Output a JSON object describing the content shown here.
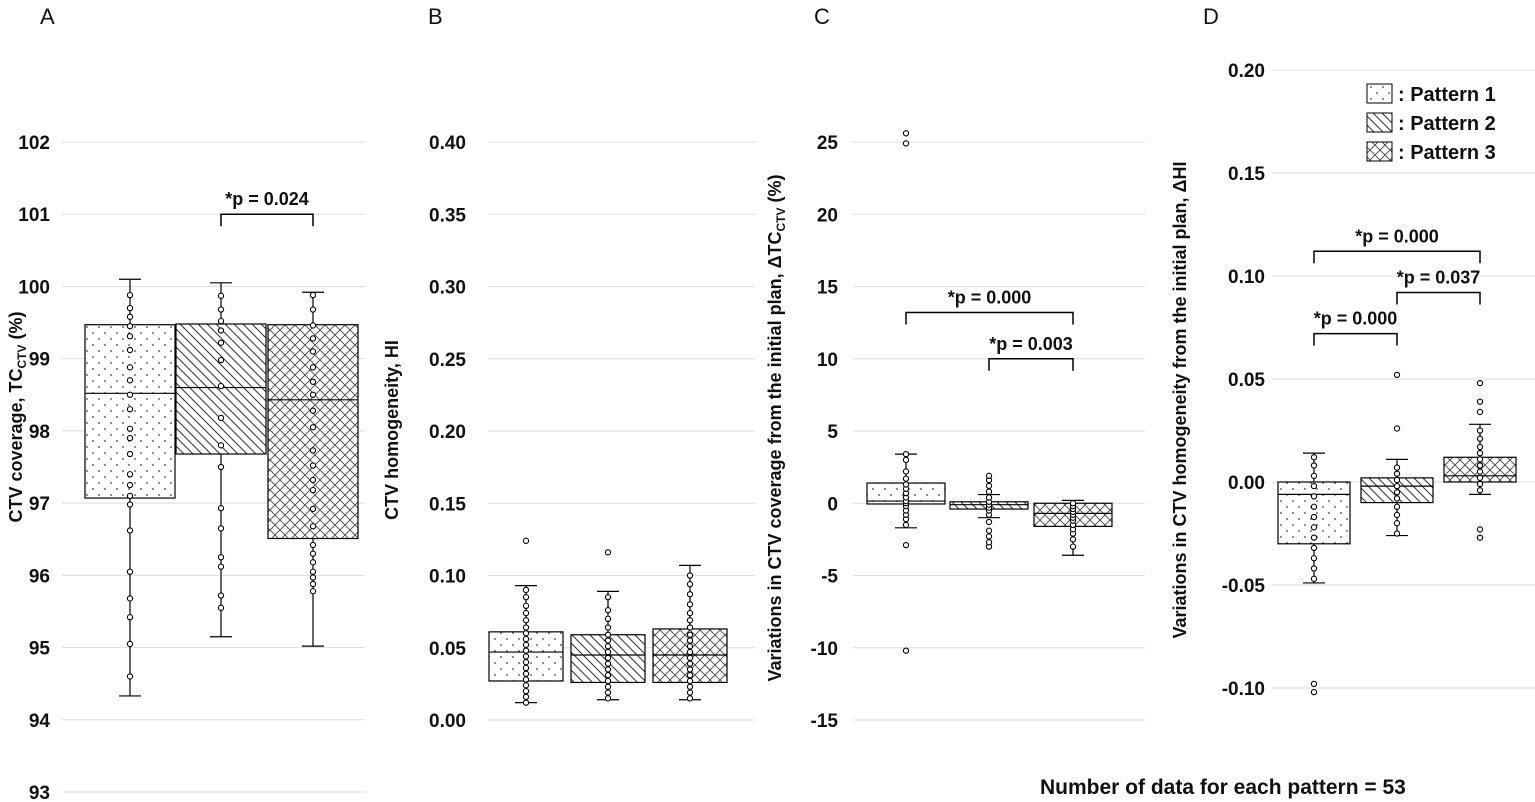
{
  "footer_note": "Number of data for each pattern = 53",
  "legend": [
    {
      "label": ": Pattern 1",
      "pattern": "dots"
    },
    {
      "label": ": Pattern 2",
      "pattern": "diag"
    },
    {
      "label": ": Pattern 3",
      "pattern": "cross"
    }
  ],
  "chart_data": [
    {
      "panel": "A",
      "type": "box",
      "ylabel": "CTV coverage, TC",
      "ylabel_sub": "CTV",
      "ylabel_suffix": " (%)",
      "ylim": [
        93,
        102
      ],
      "yticks": [
        93,
        94,
        95,
        96,
        97,
        98,
        99,
        100,
        101,
        102
      ],
      "ytick_labels": [
        "93",
        "94",
        "95",
        "96",
        "97",
        "98",
        "99",
        "100",
        "101",
        "102"
      ],
      "categories": [
        "Pattern 1",
        "Pattern 2",
        "Pattern 3"
      ],
      "boxes": [
        {
          "whisker_low": 94.33,
          "q1": 97.07,
          "median": 98.52,
          "q3": 99.47,
          "whisker_high": 100.1,
          "points": [
            94.6,
            95.05,
            95.42,
            95.68,
            96.05,
            96.62,
            96.98,
            97.1,
            97.25,
            97.4,
            97.68,
            97.9,
            98.03,
            98.3,
            98.5,
            98.7,
            98.88,
            99.12,
            99.31,
            99.45,
            99.58,
            99.7,
            99.88
          ]
        },
        {
          "whisker_low": 95.15,
          "q1": 97.68,
          "median": 98.6,
          "q3": 99.48,
          "whisker_high": 100.05,
          "points": [
            95.55,
            95.72,
            96.12,
            96.25,
            96.65,
            96.93,
            97.5,
            97.8,
            98.18,
            98.62,
            98.98,
            99.22,
            99.39,
            99.52,
            99.68,
            99.87
          ]
        },
        {
          "whisker_low": 95.02,
          "q1": 96.51,
          "median": 98.43,
          "q3": 99.47,
          "whisker_high": 99.92,
          "points": [
            95.78,
            95.88,
            95.97,
            96.05,
            96.18,
            96.3,
            96.42,
            96.68,
            96.92,
            97.18,
            97.32,
            97.52,
            97.73,
            98.05,
            98.28,
            98.5,
            98.68,
            98.88,
            99.1,
            99.28,
            99.46,
            99.68,
            99.88
          ]
        }
      ],
      "significance": [
        {
          "text": "*p = 0.024",
          "from": 2,
          "to": 3,
          "y": 101.0
        }
      ]
    },
    {
      "panel": "B",
      "type": "box",
      "ylabel": "CTV homogeneity, HI",
      "ylim": [
        0.0,
        0.4
      ],
      "yticks": [
        0.0,
        0.05,
        0.1,
        0.15,
        0.2,
        0.25,
        0.3,
        0.35,
        0.4
      ],
      "ytick_labels": [
        "0.00",
        "0.05",
        "0.10",
        "0.15",
        "0.20",
        "0.25",
        "0.30",
        "0.35",
        "0.40"
      ],
      "categories": [
        "Pattern 1",
        "Pattern 2",
        "Pattern 3"
      ],
      "boxes": [
        {
          "whisker_low": 0.012,
          "q1": 0.027,
          "median": 0.047,
          "q3": 0.061,
          "whisker_high": 0.093,
          "points": [
            0.012,
            0.016,
            0.02,
            0.024,
            0.028,
            0.032,
            0.036,
            0.04,
            0.044,
            0.048,
            0.052,
            0.056,
            0.06,
            0.064,
            0.069,
            0.074,
            0.079,
            0.085,
            0.09,
            0.124
          ]
        },
        {
          "whisker_low": 0.014,
          "q1": 0.026,
          "median": 0.045,
          "q3": 0.059,
          "whisker_high": 0.089,
          "points": [
            0.015,
            0.019,
            0.023,
            0.027,
            0.031,
            0.035,
            0.039,
            0.043,
            0.047,
            0.051,
            0.055,
            0.059,
            0.064,
            0.07,
            0.076,
            0.085,
            0.116
          ]
        },
        {
          "whisker_low": 0.014,
          "q1": 0.026,
          "median": 0.045,
          "q3": 0.063,
          "whisker_high": 0.107,
          "points": [
            0.015,
            0.019,
            0.023,
            0.027,
            0.031,
            0.035,
            0.039,
            0.043,
            0.047,
            0.051,
            0.055,
            0.059,
            0.064,
            0.069,
            0.074,
            0.08,
            0.087,
            0.094,
            0.1
          ]
        }
      ],
      "significance": []
    },
    {
      "panel": "C",
      "type": "box",
      "ylabel": "Variations in CTV coverage from the initial plan, ΔTC",
      "ylabel_sub": "CTV",
      "ylabel_suffix": " (%)",
      "ylim": [
        -15,
        25
      ],
      "yticks": [
        -15,
        -10,
        -5,
        0,
        5,
        10,
        15,
        20,
        25
      ],
      "ytick_labels": [
        "-15",
        "-10",
        "-5",
        "0",
        "5",
        "10",
        "15",
        "20",
        "25"
      ],
      "categories": [
        "Pattern 1",
        "Pattern 2",
        "Pattern 3"
      ],
      "boxes": [
        {
          "whisker_low": -1.7,
          "q1": -0.05,
          "median": 0.15,
          "q3": 1.4,
          "whisker_high": 3.4,
          "points": [
            -10.2,
            -2.9,
            -1.5,
            -1.1,
            -0.8,
            -0.5,
            -0.2,
            0.0,
            0.15,
            0.4,
            0.7,
            1.0,
            1.3,
            1.7,
            2.2,
            3.0,
            3.4,
            24.9,
            25.6
          ]
        },
        {
          "whisker_low": -1.0,
          "q1": -0.4,
          "median": -0.1,
          "q3": 0.1,
          "whisker_high": 0.6,
          "points": [
            -3.0,
            -2.7,
            -2.3,
            -1.9,
            -1.3,
            -0.8,
            -0.5,
            -0.3,
            -0.1,
            0.1,
            0.4,
            0.8,
            1.2,
            1.6,
            1.9
          ]
        },
        {
          "whisker_low": -3.6,
          "q1": -1.6,
          "median": -0.7,
          "q3": 0.0,
          "whisker_high": 0.2,
          "points": [
            -3.0,
            -2.5,
            -2.1,
            -1.8,
            -1.5,
            -1.2,
            -1.0,
            -0.8,
            -0.6,
            -0.4,
            -0.2,
            0.0
          ]
        }
      ],
      "significance": [
        {
          "text": "*p = 0.000",
          "from": 1,
          "to": 3,
          "y": 13.2
        },
        {
          "text": "*p = 0.003",
          "from": 2,
          "to": 3,
          "y": 10.0
        }
      ]
    },
    {
      "panel": "D",
      "type": "box",
      "ylabel": "Variations in CTV homogeneity from the initial plan, ΔHI",
      "ylim": [
        -0.1,
        0.2
      ],
      "yticks": [
        -0.1,
        -0.05,
        0.0,
        0.05,
        0.1,
        0.15,
        0.2
      ],
      "ytick_labels": [
        "-0.10",
        "-0.05",
        "0.00",
        "0.05",
        "0.10",
        "0.15",
        "0.20"
      ],
      "categories": [
        "Pattern 1",
        "Pattern 2",
        "Pattern 3"
      ],
      "boxes": [
        {
          "whisker_low": -0.049,
          "q1": -0.03,
          "median": -0.006,
          "q3": 0.0,
          "whisker_high": 0.014,
          "points": [
            -0.102,
            -0.098,
            -0.047,
            -0.042,
            -0.037,
            -0.032,
            -0.027,
            -0.022,
            -0.017,
            -0.012,
            -0.007,
            -0.002,
            0.003,
            0.008,
            0.012
          ]
        },
        {
          "whisker_low": -0.026,
          "q1": -0.01,
          "median": -0.002,
          "q3": 0.002,
          "whisker_high": 0.011,
          "points": [
            -0.025,
            -0.02,
            -0.016,
            -0.012,
            -0.008,
            -0.005,
            -0.002,
            0.001,
            0.004,
            0.007,
            0.026,
            0.052
          ]
        },
        {
          "whisker_low": -0.006,
          "q1": 0.0,
          "median": 0.003,
          "q3": 0.012,
          "whisker_high": 0.028,
          "points": [
            -0.027,
            -0.023,
            -0.004,
            -0.001,
            0.002,
            0.005,
            0.008,
            0.011,
            0.014,
            0.017,
            0.021,
            0.025,
            0.034,
            0.039,
            0.048
          ]
        }
      ],
      "significance": [
        {
          "text": "*p = 0.000",
          "from": 1,
          "to": 3,
          "y": 0.112
        },
        {
          "text": "*p = 0.037",
          "from": 2,
          "to": 3,
          "y": 0.092
        },
        {
          "text": "*p = 0.000",
          "from": 1,
          "to": 2,
          "y": 0.072
        }
      ]
    }
  ]
}
